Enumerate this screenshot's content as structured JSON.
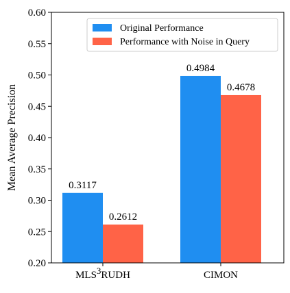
{
  "chart_data": {
    "type": "bar",
    "categories": [
      "MLS³RUDH",
      "CIMON"
    ],
    "category_labels": [
      {
        "main": "MLS",
        "sup": "3",
        "rest": "RUDH"
      },
      {
        "main": "CIMON",
        "sup": "",
        "rest": ""
      }
    ],
    "series": [
      {
        "name": "Original Performance",
        "values": [
          0.3117,
          0.4984
        ],
        "labels": [
          "0.3117",
          "0.4984"
        ],
        "color": "#1f8ef1"
      },
      {
        "name": "Performance with Noise in Query",
        "values": [
          0.2612,
          0.4678
        ],
        "labels": [
          "0.2612",
          "0.4678"
        ],
        "color": "#ff6347"
      }
    ],
    "title": "",
    "xlabel": "",
    "ylabel": "Mean Average Precision",
    "ylim": [
      0.2,
      0.6
    ],
    "yticks": [
      0.2,
      0.25,
      0.3,
      0.35,
      0.4,
      0.45,
      0.5,
      0.55,
      0.6
    ],
    "ytick_labels": [
      "0.20",
      "0.25",
      "0.30",
      "0.35",
      "0.40",
      "0.45",
      "0.50",
      "0.55",
      "0.60"
    ],
    "grid": false,
    "legend_position": "top-right"
  }
}
